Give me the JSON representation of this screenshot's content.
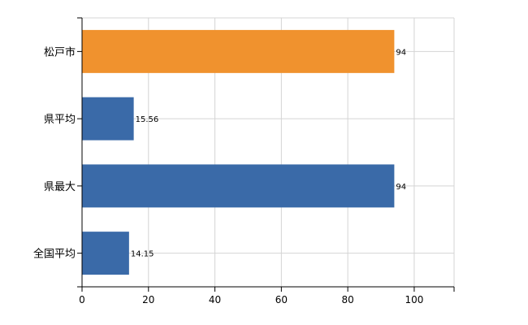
{
  "chart_data": {
    "type": "bar",
    "orientation": "horizontal",
    "categories": [
      "松戸市",
      "県平均",
      "県最大",
      "全国平均"
    ],
    "values": [
      94,
      15.56,
      94,
      14.15
    ],
    "value_labels": [
      "94",
      "15.56",
      "94",
      "14.15"
    ],
    "bar_colors": [
      "#F0922E",
      "#3A6AA8",
      "#3A6AA8",
      "#3A6AA8"
    ],
    "xlim": [
      0,
      112
    ],
    "x_ticks": [
      0,
      20,
      40,
      60,
      80,
      100
    ],
    "grid": true,
    "title": "",
    "xlabel": "",
    "ylabel": ""
  }
}
